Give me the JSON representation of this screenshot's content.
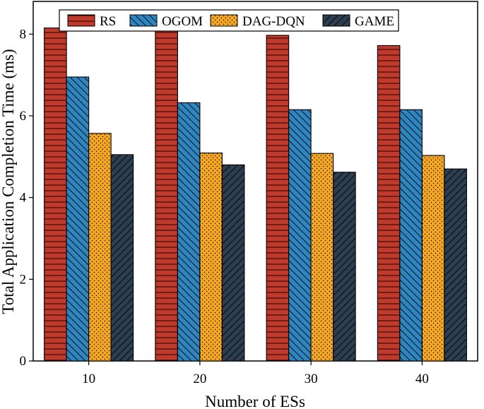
{
  "chart_data": {
    "type": "bar",
    "title": "",
    "xlabel": "Number of ESs",
    "ylabel": "Total Application Completion Time (ms)",
    "categories": [
      "10",
      "20",
      "30",
      "40"
    ],
    "ylim": [
      0,
      8.8
    ],
    "yticks": [
      "0",
      "2",
      "4",
      "6",
      "8"
    ],
    "legend_position": "top",
    "series": [
      {
        "name": "RS",
        "values": [
          8.15,
          8.1,
          7.97,
          7.72
        ],
        "color": "#c0392b",
        "pattern": "horizontal-lines"
      },
      {
        "name": "OGOM",
        "values": [
          6.95,
          6.32,
          6.15,
          6.15
        ],
        "color": "#2e86c1",
        "pattern": "diagonal-back"
      },
      {
        "name": "DAG-DQN",
        "values": [
          5.57,
          5.09,
          5.08,
          5.03
        ],
        "color": "#f5a623",
        "pattern": "dots"
      },
      {
        "name": "GAME",
        "values": [
          5.05,
          4.8,
          4.62,
          4.7
        ],
        "color": "#2c3e50",
        "pattern": "diagonal-forward"
      }
    ]
  }
}
